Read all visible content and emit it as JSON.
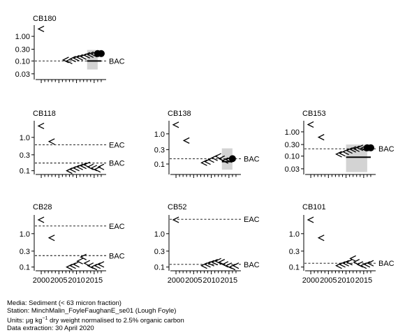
{
  "chart_data": [
    {
      "title": "CB180",
      "type": "scatter",
      "scale": "log",
      "yticks": [
        "1.00",
        "0.30",
        "0.10",
        "0.03"
      ],
      "ytick_values": [
        1.0,
        0.3,
        0.1,
        0.03
      ],
      "xlim": [
        1999,
        2018
      ],
      "ylim": [
        0.02,
        2.2
      ],
      "assessment_lines": [
        {
          "label": "BAC",
          "value": 0.1
        }
      ],
      "below_detection": [
        [
          2000,
          2.0
        ],
        [
          2007,
          0.11
        ],
        [
          2008,
          0.1
        ],
        [
          2009,
          0.12
        ],
        [
          2010,
          0.13
        ],
        [
          2011,
          0.14
        ],
        [
          2012,
          0.15
        ],
        [
          2013,
          0.17
        ],
        [
          2014,
          0.18
        ],
        [
          2015,
          0.19
        ]
      ],
      "detected": [
        [
          2016,
          0.2
        ],
        [
          2017,
          0.2
        ]
      ],
      "trend_box": {
        "x": [
          2013,
          2016
        ],
        "y": [
          0.045,
          0.28
        ]
      },
      "fitted_line": {
        "x": [
          2013,
          2017
        ],
        "y": [
          0.1,
          0.1
        ]
      },
      "show_x_labels": false
    },
    {
      "title": "CB118",
      "type": "scatter",
      "scale": "log",
      "yticks": [
        "1.0",
        "0.3",
        "0.1"
      ],
      "ytick_values": [
        1.0,
        0.3,
        0.1
      ],
      "xlim": [
        1999,
        2018
      ],
      "ylim": [
        0.085,
        2.6
      ],
      "assessment_lines": [
        {
          "label": "EAC",
          "value": 0.6
        },
        {
          "label": "BAC",
          "value": 0.17
        }
      ],
      "below_detection": [
        [
          2000,
          2.2
        ],
        [
          2003,
          0.75
        ],
        [
          2008,
          0.1
        ],
        [
          2009,
          0.11
        ],
        [
          2010,
          0.12
        ],
        [
          2011,
          0.13
        ],
        [
          2012,
          0.14
        ],
        [
          2013,
          0.15
        ],
        [
          2014,
          0.13
        ],
        [
          2015,
          0.12
        ],
        [
          2016,
          0.11
        ],
        [
          2017,
          0.13
        ]
      ],
      "detected": [],
      "show_x_labels": false
    },
    {
      "title": "CB138",
      "type": "scatter",
      "scale": "log",
      "yticks": [
        "1.0",
        "0.3",
        "0.1"
      ],
      "ytick_values": [
        1.0,
        0.3,
        0.1
      ],
      "xlim": [
        1999,
        2018
      ],
      "ylim": [
        0.05,
        2.2
      ],
      "assessment_lines": [
        {
          "label": "BAC",
          "value": 0.15
        }
      ],
      "below_detection": [
        [
          2000,
          2.0
        ],
        [
          2003,
          0.6
        ],
        [
          2008,
          0.11
        ],
        [
          2009,
          0.12
        ],
        [
          2010,
          0.14
        ],
        [
          2011,
          0.16
        ],
        [
          2012,
          0.18
        ],
        [
          2013,
          0.15
        ],
        [
          2014,
          0.13
        ],
        [
          2015,
          0.14
        ]
      ],
      "detected": [
        [
          2016,
          0.15
        ]
      ],
      "trend_box": {
        "x": [
          2013,
          2016
        ],
        "y": [
          0.065,
          0.33
        ]
      },
      "fitted_line": {
        "x": [
          2013,
          2016
        ],
        "y": [
          0.12,
          0.12
        ]
      },
      "show_x_labels": false
    },
    {
      "title": "CB153",
      "type": "scatter",
      "scale": "log",
      "yticks": [
        "1.00",
        "0.30",
        "0.10",
        "0.03"
      ],
      "ytick_values": [
        1.0,
        0.3,
        0.1,
        0.03
      ],
      "xlim": [
        1999,
        2018
      ],
      "ylim": [
        0.02,
        2.2
      ],
      "assessment_lines": [
        {
          "label": "BAC",
          "value": 0.2
        }
      ],
      "below_detection": [
        [
          2000,
          2.0
        ],
        [
          2003,
          0.6
        ],
        [
          2008,
          0.12
        ],
        [
          2009,
          0.13
        ],
        [
          2010,
          0.15
        ],
        [
          2011,
          0.17
        ],
        [
          2012,
          0.19
        ],
        [
          2013,
          0.2
        ],
        [
          2014,
          0.22
        ],
        [
          2015,
          0.21
        ]
      ],
      "detected": [
        [
          2016,
          0.22
        ],
        [
          2017,
          0.22
        ]
      ],
      "trend_box": {
        "x": [
          2010,
          2016
        ],
        "y": [
          0.022,
          0.3
        ]
      },
      "fitted_line": {
        "x": [
          2010,
          2017
        ],
        "y": [
          0.09,
          0.09
        ]
      },
      "show_x_labels": false
    },
    {
      "title": "CB28",
      "type": "scatter",
      "scale": "log",
      "yticks": [
        "1.0",
        "0.3",
        "0.1"
      ],
      "ytick_values": [
        1.0,
        0.3,
        0.1
      ],
      "xlim": [
        1999,
        2018
      ],
      "ylim": [
        0.085,
        3.0
      ],
      "assessment_lines": [
        {
          "label": "EAC",
          "value": 1.7
        },
        {
          "label": "BAC",
          "value": 0.22
        }
      ],
      "below_detection": [
        [
          2000,
          2.6
        ],
        [
          2003,
          0.75
        ],
        [
          2008,
          0.1
        ],
        [
          2009,
          0.11
        ],
        [
          2010,
          0.12
        ],
        [
          2011,
          0.15
        ],
        [
          2012,
          0.2
        ],
        [
          2013,
          0.13
        ],
        [
          2014,
          0.11
        ],
        [
          2015,
          0.1
        ],
        [
          2016,
          0.11
        ],
        [
          2017,
          0.12
        ]
      ],
      "detected": [],
      "xticks": [
        "2000",
        "2005",
        "2010",
        "2015"
      ],
      "show_x_labels": true
    },
    {
      "title": "CB52",
      "type": "scatter",
      "scale": "log",
      "yticks": [
        "1.0",
        "0.3",
        "0.1"
      ],
      "ytick_values": [
        1.0,
        0.3,
        0.1
      ],
      "xlim": [
        1999,
        2018
      ],
      "ylim": [
        0.085,
        3.0
      ],
      "assessment_lines": [
        {
          "label": "EAC",
          "value": 2.7
        },
        {
          "label": "BAC",
          "value": 0.12
        }
      ],
      "below_detection": [
        [
          2000,
          2.6
        ],
        [
          2008,
          0.11
        ],
        [
          2009,
          0.12
        ],
        [
          2010,
          0.13
        ],
        [
          2011,
          0.14
        ],
        [
          2012,
          0.15
        ],
        [
          2013,
          0.14
        ],
        [
          2014,
          0.12
        ],
        [
          2015,
          0.11
        ],
        [
          2016,
          0.1
        ],
        [
          2017,
          0.11
        ]
      ],
      "detected": [],
      "xticks": [
        "2000",
        "2005",
        "2010",
        "2015"
      ],
      "show_x_labels": true
    },
    {
      "title": "CB101",
      "type": "scatter",
      "scale": "log",
      "yticks": [
        "1.0",
        "0.3",
        "0.1"
      ],
      "ytick_values": [
        1.0,
        0.3,
        0.1
      ],
      "xlim": [
        1999,
        2018
      ],
      "ylim": [
        0.085,
        3.0
      ],
      "assessment_lines": [
        {
          "label": "BAC",
          "value": 0.13
        }
      ],
      "below_detection": [
        [
          2000,
          2.6
        ],
        [
          2003,
          0.75
        ],
        [
          2008,
          0.11
        ],
        [
          2009,
          0.12
        ],
        [
          2010,
          0.13
        ],
        [
          2011,
          0.14
        ],
        [
          2012,
          0.18
        ],
        [
          2013,
          0.14
        ],
        [
          2014,
          0.12
        ],
        [
          2015,
          0.11
        ],
        [
          2016,
          0.12
        ],
        [
          2017,
          0.13
        ]
      ],
      "detected": [],
      "xticks": [
        "2000",
        "2005",
        "2010",
        "2015"
      ],
      "show_x_labels": true
    }
  ],
  "footer": {
    "media": "Media: Sediment (< 63 micron fraction)",
    "station": "Station: MinchMalin_FoyleFaughanE_se01 (Lough Foyle)",
    "units_prefix": "Units: ",
    "units_mu": "μg kg",
    "units_sup": "−1",
    "units_suffix": " dry weight normalised to 2.5% organic carbon",
    "extraction": "Data extraction: 30 April 2020"
  },
  "colors": {
    "box": "#d3d3d3",
    "ink": "#000000"
  }
}
